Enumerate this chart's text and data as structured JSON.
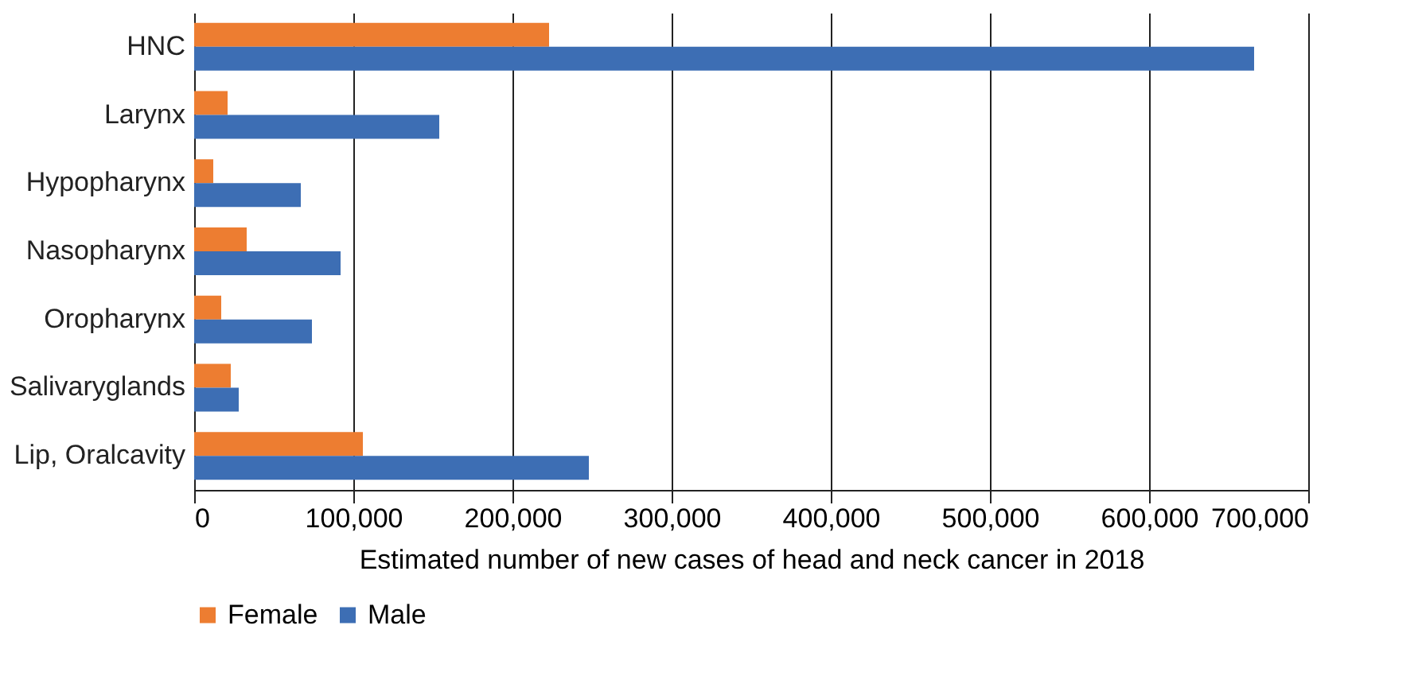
{
  "chart_data": {
    "type": "bar",
    "orientation": "horizontal",
    "xlabel": "Estimated number of new cases of head and neck cancer in 2018",
    "categories": [
      "HNC",
      "Larynx",
      "Hypopharynx",
      "Nasopharynx",
      "Oropharynx",
      "Salivaryglands",
      "Lip, Oralcavity"
    ],
    "series": [
      {
        "name": "Female",
        "color": "#ed7d31",
        "values": [
          223000,
          21000,
          12000,
          33000,
          17000,
          23000,
          106000
        ]
      },
      {
        "name": "Male",
        "color": "#3d6eb4",
        "values": [
          666000,
          154000,
          67000,
          92000,
          74000,
          28000,
          248000
        ]
      }
    ],
    "xlim": [
      0,
      700000
    ],
    "xticks": [
      {
        "value": 0,
        "label": "0"
      },
      {
        "value": 100000,
        "label": "100,000"
      },
      {
        "value": 200000,
        "label": "200,000"
      },
      {
        "value": 300000,
        "label": "300,000"
      },
      {
        "value": 400000,
        "label": "400,000"
      },
      {
        "value": 500000,
        "label": "500,000"
      },
      {
        "value": 600000,
        "label": "600,000"
      },
      {
        "value": 700000,
        "label": "700,000"
      }
    ],
    "grid": "x",
    "legend": "bottom"
  }
}
